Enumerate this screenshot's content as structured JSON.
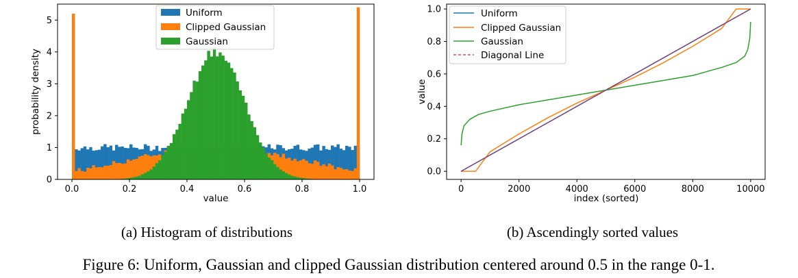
{
  "colors": {
    "uniform": "#1f77b4",
    "clipped": "#ff7f0e",
    "gaussian": "#2ca02c",
    "diagonal": "#d62728",
    "purple": "#7e3f7e"
  },
  "chart_data": [
    {
      "type": "bar",
      "subcaption": "(a) Histogram of distributions",
      "xlabel": "value",
      "ylabel": "probability density",
      "xlim": [
        -0.05,
        1.05
      ],
      "ylim": [
        0,
        5.5
      ],
      "xticks": [
        "0.0",
        "0.2",
        "0.4",
        "0.6",
        "0.8",
        "1.0"
      ],
      "yticks": [
        "0",
        "1",
        "2",
        "3",
        "4",
        "5"
      ],
      "legend": {
        "placement": "top-center",
        "entries": [
          "Uniform",
          "Clipped Gaussian",
          "Gaussian"
        ]
      },
      "bins": 100,
      "series": [
        {
          "name": "Uniform",
          "color_key": "uniform",
          "approx_density": 1.0
        },
        {
          "name": "Clipped Gaussian",
          "color_key": "clipped",
          "edge_spikes": [
            5.2,
            5.4
          ]
        },
        {
          "name": "Gaussian",
          "color_key": "gaussian",
          "center": 0.5,
          "peak": 4.1
        }
      ]
    },
    {
      "type": "line",
      "subcaption": "(b) Ascendingly sorted values",
      "xlabel": "index (sorted)",
      "ylabel": "value",
      "xlim": [
        -500,
        10500
      ],
      "ylim": [
        -0.05,
        1.03
      ],
      "xticks": [
        "0",
        "2000",
        "4000",
        "6000",
        "8000",
        "10000"
      ],
      "yticks": [
        "0.0",
        "0.2",
        "0.4",
        "0.6",
        "0.8",
        "1.0"
      ],
      "legend": {
        "placement": "top-left",
        "entries": [
          "Uniform",
          "Clipped Gaussian",
          "Gaussian",
          "Diagonal Line"
        ]
      },
      "series": [
        {
          "name": "Uniform",
          "color_key": "uniform",
          "x": [
            0,
            10000
          ],
          "y": [
            0,
            1
          ]
        },
        {
          "name": "Clipped Gaussian",
          "color_key": "clipped",
          "x": [
            0,
            500,
            1000,
            2000,
            3000,
            4000,
            5000,
            6000,
            7000,
            8000,
            9000,
            9500,
            10000
          ],
          "y": [
            0,
            0,
            0.12,
            0.23,
            0.33,
            0.42,
            0.5,
            0.58,
            0.67,
            0.77,
            0.88,
            1.0,
            1.0
          ]
        },
        {
          "name": "Gaussian",
          "color_key": "gaussian",
          "x": [
            0,
            30,
            100,
            300,
            600,
            1000,
            2000,
            3000,
            4000,
            5000,
            6000,
            7000,
            8000,
            9000,
            9500,
            9800,
            9900,
            9970,
            10000
          ],
          "y": [
            0.16,
            0.23,
            0.28,
            0.32,
            0.35,
            0.37,
            0.41,
            0.44,
            0.47,
            0.5,
            0.53,
            0.56,
            0.59,
            0.64,
            0.67,
            0.71,
            0.75,
            0.82,
            0.92
          ]
        },
        {
          "name": "Diagonal Line",
          "color_key": "diagonal",
          "dashed": true,
          "x": [
            0,
            10000
          ],
          "y": [
            0,
            1
          ]
        }
      ]
    }
  ],
  "figure_caption": "Figure 6: Uniform, Gaussian and clipped Gaussian distribution centered around 0.5 in the range 0-1."
}
